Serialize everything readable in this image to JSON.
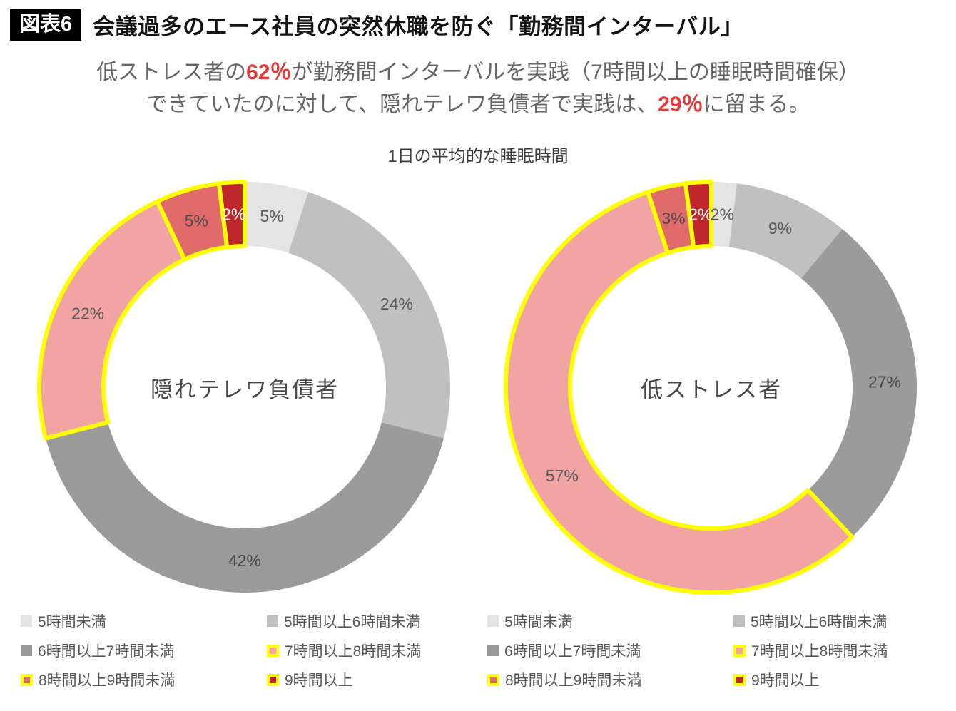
{
  "header": {
    "tag": "図表6",
    "title": "会議過多のエース社員の突然休職を防ぐ「勤務間インターバル」"
  },
  "subtitle": {
    "lines": [
      [
        {
          "t": "低ストレス者の",
          "em": false
        },
        {
          "t": "62％",
          "em": true
        },
        {
          "t": "が勤務間インターバルを実践（7時間以上の睡眠時間確保）",
          "em": false
        }
      ],
      [
        {
          "t": "できていたのに対して、隠れテレワ負債者で実践は、",
          "em": false
        },
        {
          "t": "29％",
          "em": true
        },
        {
          "t": "に留まる。",
          "em": false
        }
      ]
    ]
  },
  "chart_data": {
    "type": "pie",
    "subtype": "donut",
    "title": "1日の平均的な睡眠時間",
    "unit": "%",
    "categories": [
      "5時間未満",
      "5時間以上6時間未満",
      "6時間以上7時間未満",
      "7時間以上8時間未満",
      "8時間以上9時間未満",
      "9時間以上"
    ],
    "series": [
      {
        "name": "隠れテレワ負債者",
        "values": [
          5,
          24,
          42,
          22,
          5,
          2
        ]
      },
      {
        "name": "低ストレス者",
        "values": [
          2,
          9,
          27,
          57,
          3,
          2
        ]
      }
    ],
    "colors": [
      "#e4e4e4",
      "#c0c0c0",
      "#9b9b9b",
      "#f2a3a3",
      "#e16a6a",
      "#c0272d"
    ],
    "outlined": [
      false,
      false,
      false,
      true,
      true,
      true
    ],
    "outline_color": "#ffff00",
    "label_colors": [
      "#595959",
      "#595959",
      "#474747",
      "#595959",
      "#4a4a4a",
      "#ffffff"
    ],
    "legend_position": "bottom",
    "start_angle_deg": 0,
    "direction": "clockwise"
  },
  "colors": {
    "accent_red": "#e23b3b",
    "tag_bg": "#000000",
    "tag_text": "#ffffff"
  }
}
